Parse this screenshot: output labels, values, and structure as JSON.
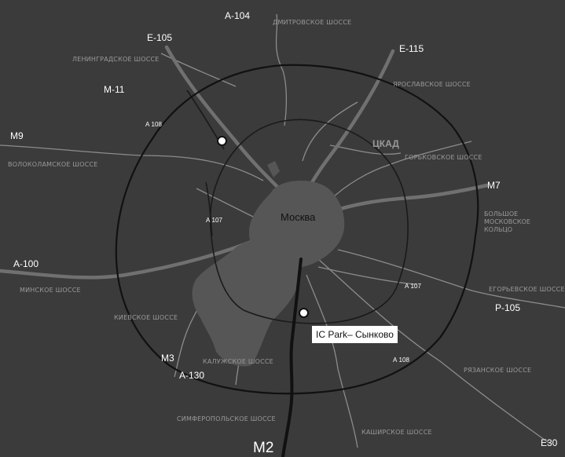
{
  "colors": {
    "background": "#3b3b3b",
    "city_fill": "#555555",
    "ring_stroke": "#111111",
    "highway_gray": "#707070",
    "road_light": "#9a9a9a",
    "m2_highway": "#111111",
    "label_white": "#ffffff"
  },
  "city": {
    "name": "Москва"
  },
  "ckad": {
    "label": "ЦКАД"
  },
  "bmk": {
    "label_lines": [
      "БОЛЬШОЕ",
      "МОСКОВСКОЕ",
      "КОЛЬЦО"
    ]
  },
  "callout": {
    "label": "IC Park– Сынково"
  },
  "highways": {
    "a104": "А-104",
    "e105": "Е-105",
    "e115": "Е-115",
    "m11": "М-11",
    "m9": "М9",
    "m7": "М7",
    "a100": "А-100",
    "p105": "Р-105",
    "m3": "М3",
    "a130": "А-130",
    "m2": "М2",
    "e30": "Е30",
    "a108_nw": "А 108",
    "a107_w": "А 107",
    "a107_e": "А 107",
    "a108_se": "А 108"
  },
  "roads": {
    "dmitrovskoe": "ДМИТРОВСКОЕ ШОССЕ",
    "leningradskoe": "ЛЕНИНГРАДСКОЕ ШОССЕ",
    "yaroslavskoe": "ЯРОСЛАВСКОЕ ШОССЕ",
    "gorkovskoe": "ГОРЬКОВСКОЕ ШОССЕ",
    "volokolamskoe": "ВОЛОКОЛАМСКОЕ ШОССЕ",
    "minskoe": "МИНСКОЕ ШОССЕ",
    "kievskoe": "КИЕВСКОЕ ШОССЕ",
    "kaluzhskoe": "КАЛУЖСКОЕ ШОССЕ",
    "egorievskoe": "ЕГОРЬЕВСКОЕ ШОССЕ",
    "ryazanskoe": "РЯЗАНСКОЕ ШОССЕ",
    "simferopolskoe": "СИМФЕРОПОЛЬСКОЕ ШОССЕ",
    "kashirskoe": "КАШИРСКОЕ ШОССЕ"
  }
}
